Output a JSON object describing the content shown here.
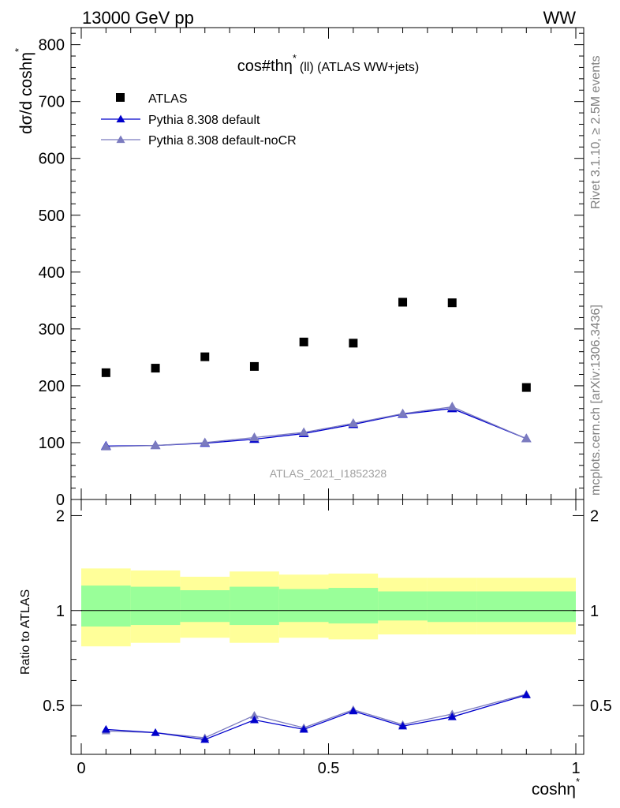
{
  "header": {
    "left": "13000 GeV pp",
    "right": "WW"
  },
  "side_text": {
    "rivet": "Rivet 3.1.10, ≥ 2.5M events",
    "mcplots": "mcplots.cern.ch [arXiv:1306.3436]"
  },
  "chart_data": [
    {
      "type": "scatter",
      "title": "cos#thη* (ll) (ATLAS WW+jets)",
      "title_main": "cos#thη",
      "title_sup": "*",
      "title_rest": "(ll) (ATLAS WW+jets)",
      "ylabel": "dσ/d coshη",
      "ylabel_sup": "*",
      "watermark": "ATLAS_2021_I1852328",
      "xlim": [
        0,
        1
      ],
      "ylim": [
        0,
        830
      ],
      "y_ticks": [
        "0",
        "100",
        "200",
        "300",
        "400",
        "500",
        "600",
        "700",
        "800"
      ],
      "legend": {
        "placement": "top-left",
        "entries": [
          "ATLAS",
          "Pythia 8.308 default",
          "Pythia 8.308 default-noCR"
        ]
      },
      "series": [
        {
          "name": "ATLAS",
          "color": "#000000",
          "marker": "square",
          "x": [
            0.05,
            0.15,
            0.25,
            0.35,
            0.45,
            0.55,
            0.65,
            0.75,
            0.9
          ],
          "values": [
            223,
            231,
            251,
            234,
            277,
            275,
            347,
            346,
            197
          ]
        },
        {
          "name": "Pythia 8.308 default",
          "color": "#0000cc",
          "marker": "triangle",
          "x": [
            0.05,
            0.15,
            0.25,
            0.35,
            0.45,
            0.55,
            0.65,
            0.75,
            0.9
          ],
          "values": [
            94,
            95,
            99,
            106,
            116,
            132,
            150,
            160,
            107
          ]
        },
        {
          "name": "Pythia 8.308 default-noCR",
          "color": "#7b7bbf",
          "marker": "triangle",
          "x": [
            0.05,
            0.15,
            0.25,
            0.35,
            0.45,
            0.55,
            0.65,
            0.75,
            0.9
          ],
          "values": [
            93,
            95,
            100,
            109,
            118,
            134,
            151,
            163,
            107
          ]
        }
      ]
    },
    {
      "type": "line",
      "ylabel": "Ratio to ATLAS",
      "xlabel": "coshη",
      "xlabel_sup": "*",
      "xlim": [
        0,
        1
      ],
      "ylim": [
        0.35,
        2.25
      ],
      "x_ticks": [
        "0",
        "0.5",
        "1"
      ],
      "y_ticks": [
        "0.5",
        "1",
        "2"
      ],
      "bands": {
        "x_edges": [
          0,
          0.1,
          0.2,
          0.3,
          0.4,
          0.5,
          0.6,
          0.7,
          0.8,
          1.0
        ],
        "yellow_low": [
          0.77,
          0.79,
          0.82,
          0.79,
          0.82,
          0.81,
          0.84,
          0.84,
          0.84
        ],
        "yellow_high": [
          1.36,
          1.34,
          1.28,
          1.33,
          1.3,
          1.31,
          1.27,
          1.27,
          1.27
        ],
        "green_low": [
          0.89,
          0.9,
          0.92,
          0.9,
          0.92,
          0.91,
          0.93,
          0.92,
          0.92
        ],
        "green_high": [
          1.2,
          1.19,
          1.16,
          1.19,
          1.17,
          1.18,
          1.15,
          1.15,
          1.15
        ],
        "yellow_color": "#ffff99",
        "green_color": "#99ff99"
      },
      "reference_line": 1,
      "series": [
        {
          "name": "Pythia 8.308 default",
          "color": "#0000cc",
          "x": [
            0.05,
            0.15,
            0.25,
            0.35,
            0.45,
            0.55,
            0.65,
            0.75,
            0.9
          ],
          "values": [
            0.42,
            0.41,
            0.39,
            0.45,
            0.42,
            0.48,
            0.43,
            0.46,
            0.54
          ]
        },
        {
          "name": "Pythia 8.308 default-noCR",
          "color": "#7b7bbf",
          "x": [
            0.05,
            0.15,
            0.25,
            0.35,
            0.45,
            0.55,
            0.65,
            0.75,
            0.9
          ],
          "values": [
            0.415,
            0.41,
            0.395,
            0.465,
            0.425,
            0.485,
            0.435,
            0.47,
            0.543
          ]
        }
      ]
    }
  ]
}
